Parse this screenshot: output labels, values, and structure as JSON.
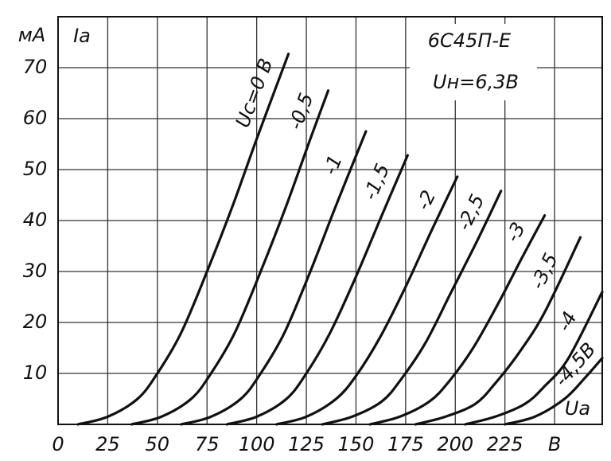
{
  "chart_data": {
    "type": "line",
    "title": "6С45П-Е",
    "subtitle": "Uн=6,3В",
    "y_unit": "мА",
    "y_label": "Iа",
    "x_label": "Uа",
    "color": "#111111",
    "grid": true,
    "xlim": [
      0,
      274
    ],
    "ylim": [
      0,
      80
    ],
    "xticks": [
      0,
      25,
      50,
      75,
      100,
      125,
      150,
      175,
      200,
      225,
      {
        "value": 250,
        "label": "B"
      }
    ],
    "yticks": [
      10,
      20,
      30,
      40,
      50,
      60,
      70
    ],
    "series": [
      {
        "name": "Uc=0 B",
        "x": [
          10,
          25,
          40,
          50,
          62,
          75,
          88,
          100,
          116
        ],
        "values": [
          0,
          1.5,
          5,
          10,
          18,
          30,
          43,
          56,
          72.7
        ]
      },
      {
        "name": "-0,5",
        "x": [
          37,
          52,
          67,
          77,
          89,
          102,
          115,
          127,
          136
        ],
        "values": [
          0,
          1.5,
          5,
          10,
          18,
          30,
          43,
          56,
          65.5
        ]
      },
      {
        "name": "-1",
        "x": [
          62,
          77,
          92,
          102,
          114,
          127,
          140,
          155
        ],
        "values": [
          0,
          1.5,
          5,
          10,
          18,
          30,
          43,
          57.5
        ]
      },
      {
        "name": "-1,5",
        "x": [
          85,
          100,
          115,
          125,
          137,
          150,
          163,
          176
        ],
        "values": [
          0,
          1.5,
          5,
          10,
          18,
          29,
          41,
          52.8
        ]
      },
      {
        "name": "-2",
        "x": [
          110,
          125,
          140,
          150,
          162,
          175,
          188,
          201
        ],
        "values": [
          0,
          1.5,
          5,
          9.5,
          17,
          27,
          38,
          48.6
        ]
      },
      {
        "name": "-2,5",
        "x": [
          133,
          148,
          163,
          173,
          185,
          198,
          211,
          223
        ],
        "values": [
          0,
          1.5,
          4.5,
          9,
          16,
          26,
          36,
          45.8
        ]
      },
      {
        "name": "-3",
        "x": [
          157,
          172,
          187,
          197,
          209,
          222,
          234,
          245
        ],
        "values": [
          0,
          1.5,
          4.5,
          8.5,
          15,
          24,
          33,
          41
        ]
      },
      {
        "name": "-3,5",
        "x": [
          180,
          195,
          210,
          220,
          232,
          245,
          263
        ],
        "values": [
          0,
          1.5,
          4,
          8,
          14,
          22,
          36.7
        ]
      },
      {
        "name": "-4",
        "x": [
          205,
          220,
          235,
          245,
          257,
          274
        ],
        "values": [
          0,
          1.5,
          4,
          7.5,
          13,
          26
        ]
      },
      {
        "name": "-4,5B",
        "x": [
          225,
          240,
          255,
          265,
          274
        ],
        "values": [
          0,
          1.5,
          5,
          9,
          13
        ]
      }
    ]
  }
}
